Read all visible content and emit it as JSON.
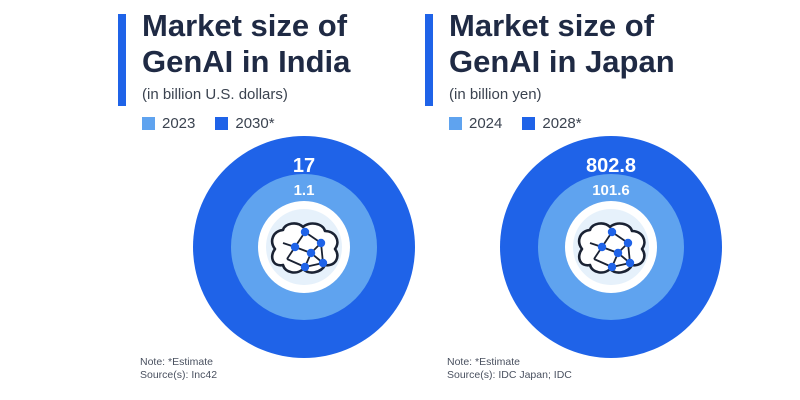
{
  "colors": {
    "outer": "#1f63e8",
    "middle": "#5fa3ef",
    "inner_bg": "#ffffff",
    "inner_fill": "#e6f1fb",
    "accent": "#1f63e8",
    "title": "#1f2a44",
    "brain_node": "#1f63e8",
    "brain_line": "#1a2233"
  },
  "panels": [
    {
      "title": "Market size of\nGenAI in India",
      "subtitle": "(in billion U.S. dollars)",
      "legend": [
        {
          "label": "2023",
          "color": "#5fa3ef"
        },
        {
          "label": "2030*",
          "color": "#1f63e8"
        }
      ],
      "note": "Note: *Estimate",
      "source": "Source(s): Inc42",
      "icon": "brain-network-icon"
    },
    {
      "title": "Market size of\nGenAI in Japan",
      "subtitle": "(in billion yen)",
      "legend": [
        {
          "label": "2024",
          "color": "#5fa3ef"
        },
        {
          "label": "2028*",
          "color": "#1f63e8"
        }
      ],
      "note": "Note: *Estimate",
      "source": "Source(s): IDC Japan; IDC",
      "icon": "brain-network-icon"
    }
  ],
  "chart_data": [
    {
      "type": "area",
      "title": "Market size of GenAI in India",
      "subtitle": "(in billion U.S. dollars)",
      "series": [
        {
          "name": "2023",
          "value": 1.1,
          "label": "1.1"
        },
        {
          "name": "2030*",
          "value": 17,
          "label": "17"
        }
      ]
    },
    {
      "type": "area",
      "title": "Market size of GenAI in Japan",
      "subtitle": "(in billion yen)",
      "series": [
        {
          "name": "2024",
          "value": 101.6,
          "label": "101.6"
        },
        {
          "name": "2028*",
          "value": 802.8,
          "label": "802.8"
        }
      ]
    }
  ]
}
